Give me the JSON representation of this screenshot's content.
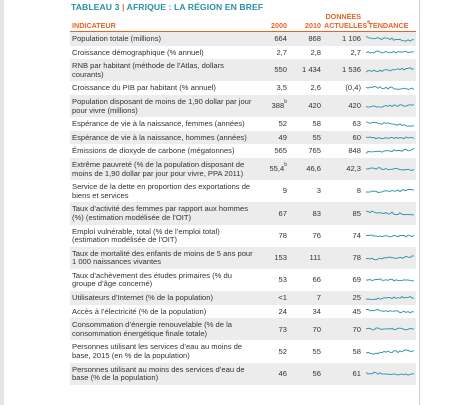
{
  "header": {
    "title_label": "TABLEAU 3",
    "title_text": "AFRIQUE : LA RÉGION EN BREF"
  },
  "table": {
    "columns": {
      "indicator": "INDICATEUR",
      "y2000": "2000",
      "y2010": "2010",
      "current": "DONNÉES ACTUELLES",
      "current_note": "a",
      "trend": "TENDANCE"
    },
    "rows": [
      {
        "label": "Population totale (millions)",
        "y2000": "664",
        "y2010": "868",
        "current": "1 106"
      },
      {
        "label": "Croissance démographique (% annuel)",
        "y2000": "2,7",
        "y2010": "2,8",
        "current": "2,7"
      },
      {
        "label": "RNB par habitant (méthode de l’Atlas, dollars courants)",
        "y2000": "550",
        "y2010": "1 434",
        "current": "1 536"
      },
      {
        "label": "Croissance du PIB par habitant (% annuel)",
        "y2000": "3,5",
        "y2010": "2,6",
        "current": "(0,4)"
      },
      {
        "label": "Population disposant de moins de 1,90 dollar par jour pour vivre (millions)",
        "y2000": "388",
        "y2000_note": "b",
        "y2010": "420",
        "current": "420"
      },
      {
        "label": "Espérance de vie à la naissance, femmes (années)",
        "y2000": "52",
        "y2010": "58",
        "current": "63"
      },
      {
        "label": "Espérance de vie à la naissance, hommes (années)",
        "y2000": "49",
        "y2010": "55",
        "current": "60"
      },
      {
        "label": "Émissions de dioxyde de carbone (mégatonnes)",
        "y2000": "565",
        "y2010": "765",
        "current": "848"
      },
      {
        "label": "Extrême pauvreté (% de la population disposant de moins de 1,90 dollar par jour pour vivre, PPA 2011)",
        "y2000": "55,4",
        "y2000_note": "b",
        "y2010": "46,6",
        "current": "42,3"
      },
      {
        "label": "Service de la dette en proportion des exportations de biens et services",
        "y2000": "9",
        "y2010": "3",
        "current": "8"
      },
      {
        "label": "Taux d’activité des femmes par rapport aux hommes (%) (estimation modélisée de l’OIT)",
        "y2000": "67",
        "y2010": "83",
        "current": "85"
      },
      {
        "label": "Emploi vulnérable, total (% de l’emploi total) (estimation modélisée de l’OIT)",
        "y2000": "78",
        "y2010": "76",
        "current": "74"
      },
      {
        "label": "Taux de mortalité des enfants de moins de 5 ans pour 1 000 naissances vivantes",
        "y2000": "153",
        "y2010": "111",
        "current": "78"
      },
      {
        "label": "Taux d’achèvement des études primaires (% du groupe d’âge concerné)",
        "y2000": "53",
        "y2010": "66",
        "current": "69"
      },
      {
        "label": "Utilisateurs d’Internet (% de la population)",
        "y2000": "<1",
        "y2010": "7",
        "current": "25"
      },
      {
        "label": "Accès à l’électricité (% de la population)",
        "y2000": "24",
        "y2010": "34",
        "current": "45"
      },
      {
        "label": "Consommation d’énergie renouvelable (% de la consommation énergétique finale totale)",
        "y2000": "73",
        "y2010": "70",
        "current": "70"
      },
      {
        "label": "Personnes utilisant les services d’eau au moins de base, 2015 (en % de la population)",
        "y2000": "52",
        "y2010": "55",
        "current": "58"
      },
      {
        "label": "Personnes utilisant au moins des services d’eau de base (% de la population)",
        "y2000": "46",
        "y2010": "56",
        "current": "61"
      }
    ]
  }
}
